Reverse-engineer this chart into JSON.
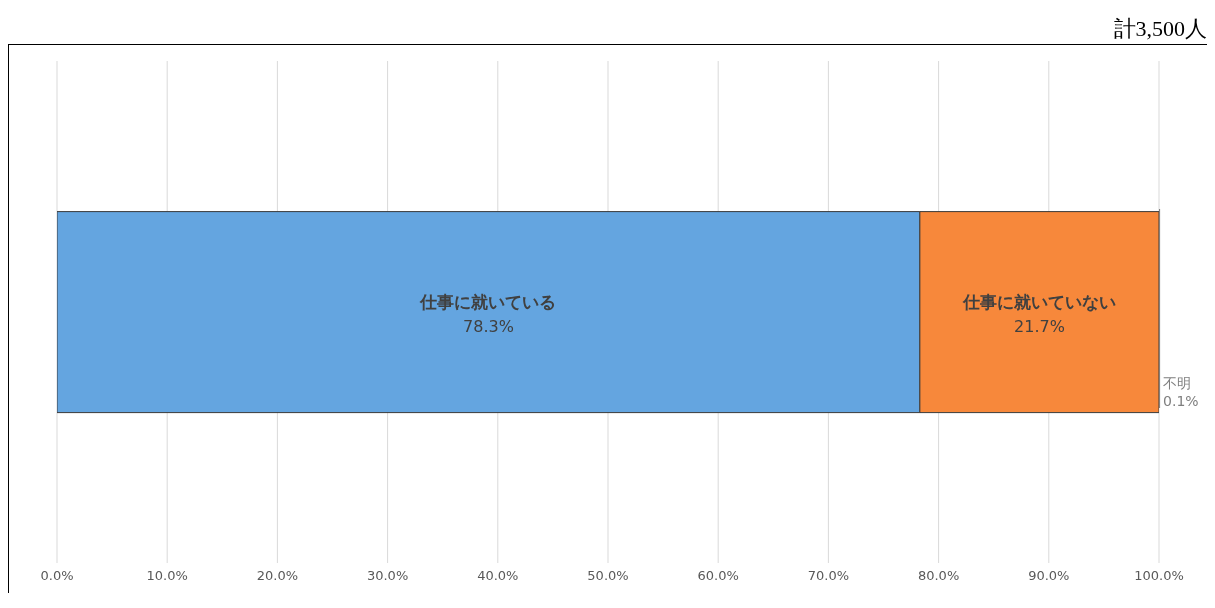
{
  "chart_data": {
    "type": "bar",
    "orientation": "horizontal",
    "stacked": true,
    "categories": [
      null
    ],
    "series": [
      {
        "name": "仕事に就いている",
        "color": "#64a5e0",
        "values": [
          78.3
        ],
        "value_labels": [
          "78.3%"
        ]
      },
      {
        "name": "仕事に就いていない",
        "color": "#f7883b",
        "values": [
          21.7
        ],
        "value_labels": [
          "21.7%"
        ]
      },
      {
        "name": "不明",
        "color": "#7f7f7f",
        "values": [
          0.1
        ],
        "value_labels": [
          "0.1%"
        ]
      }
    ],
    "xlim": [
      0,
      100
    ],
    "xticks": [
      {
        "value": 0,
        "label": "0.0%"
      },
      {
        "value": 10,
        "label": "10.0%"
      },
      {
        "value": 20,
        "label": "20.0%"
      },
      {
        "value": 30,
        "label": "30.0%"
      },
      {
        "value": 40,
        "label": "40.0%"
      },
      {
        "value": 50,
        "label": "50.0%"
      },
      {
        "value": 60,
        "label": "60.0%"
      },
      {
        "value": 70,
        "label": "70.0%"
      },
      {
        "value": 80,
        "label": "80.0%"
      },
      {
        "value": 90,
        "label": "90.0%"
      },
      {
        "value": 100,
        "label": "100.0%"
      }
    ],
    "grid": "x",
    "legend": false,
    "annotations": [
      "計3,500人"
    ]
  }
}
